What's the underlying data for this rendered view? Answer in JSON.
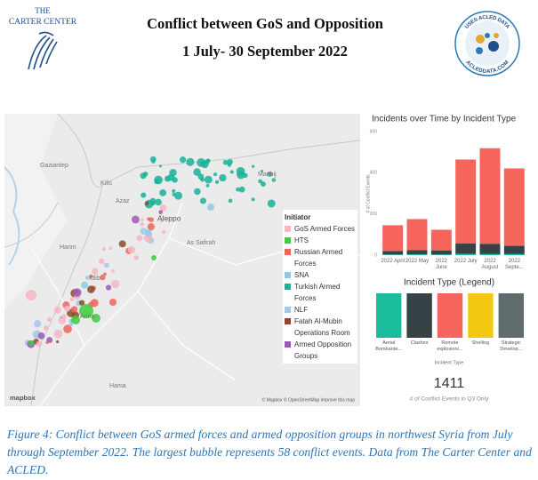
{
  "header": {
    "logo_lines": [
      "THE",
      "CARTER CENTER"
    ],
    "title": "Conflict between GoS and Opposition",
    "subtitle": "1 July- 30 September 2022",
    "badge_top": "USES ACLED DATA",
    "badge_bottom": "ACLEDDATA.COM"
  },
  "map": {
    "place_labels": [
      "Gaziantep",
      "Kilis",
      "Azaz",
      "Manbij",
      "Aleppo",
      "As Safirah",
      "Harim",
      "Idlib",
      "Ariha",
      "Hama"
    ],
    "attribution": "© Mapbox © OpenStreetMap Improve this map",
    "logo": "mapbox",
    "legend": {
      "title": "Initiator",
      "items": [
        {
          "label": "GoS Armed Forces",
          "color": "#f4b6c2"
        },
        {
          "label": "HTS",
          "color": "#3ecf3e"
        },
        {
          "label": "Russian Armed Forces",
          "color": "#f0645a"
        },
        {
          "label": "SNA",
          "color": "#8ecae6"
        },
        {
          "label": "Turkish Armed Forces",
          "color": "#19b39a"
        },
        {
          "label": "NLF",
          "color": "#a6c8e8"
        },
        {
          "label": "Fatah Al-Mubin Operations Room",
          "color": "#8b4a2b"
        },
        {
          "label": "Armed Opposition Groups",
          "color": "#9b59b6"
        }
      ]
    }
  },
  "chart_data": {
    "type": "stacked_bar",
    "title": "Incidents over Time by Incident Type",
    "y_label": "# of Conflict Events",
    "categories": [
      "2022 April",
      "2022 May",
      "2022 June",
      "2022 July",
      "2022 August",
      "2022 Septe..."
    ],
    "series": [
      {
        "name": "Aerial Bombardment",
        "color": "#1abc9c",
        "values": [
          3,
          4,
          3,
          6,
          5,
          5
        ]
      },
      {
        "name": "Clashes",
        "color": "#374246",
        "values": [
          17,
          20,
          20,
          50,
          50,
          40
        ]
      },
      {
        "name": "Remote explosion",
        "color": "#f5655c",
        "values": [
          125,
          151,
          100,
          408,
          464,
          376
        ]
      }
    ],
    "ylim": [
      0,
      600
    ],
    "yticks": [
      0,
      200,
      400,
      600
    ],
    "grid": false
  },
  "type_legend": {
    "title": "Incident Type (Legend)",
    "axis_title": "Incident Type",
    "items": [
      {
        "label": "Aerial Bombarde...",
        "color": "#1abc9c"
      },
      {
        "label": "Clashes",
        "color": "#374246"
      },
      {
        "label": "Remote explosion/...",
        "color": "#f5655c"
      },
      {
        "label": "Shelling",
        "color": "#f2c811"
      },
      {
        "label": "Strategic Develop...",
        "color": "#5f6b6d"
      }
    ]
  },
  "kpi": {
    "value": "1411",
    "label": "# of Conflict Events in Q3 Only"
  },
  "caption": "Figure 4: Conflict between GoS armed forces and armed opposition groups in northwest Syria from July through September 2022. The largest bubble represents 58 conflict events. Data from The Carter Center and ACLED."
}
